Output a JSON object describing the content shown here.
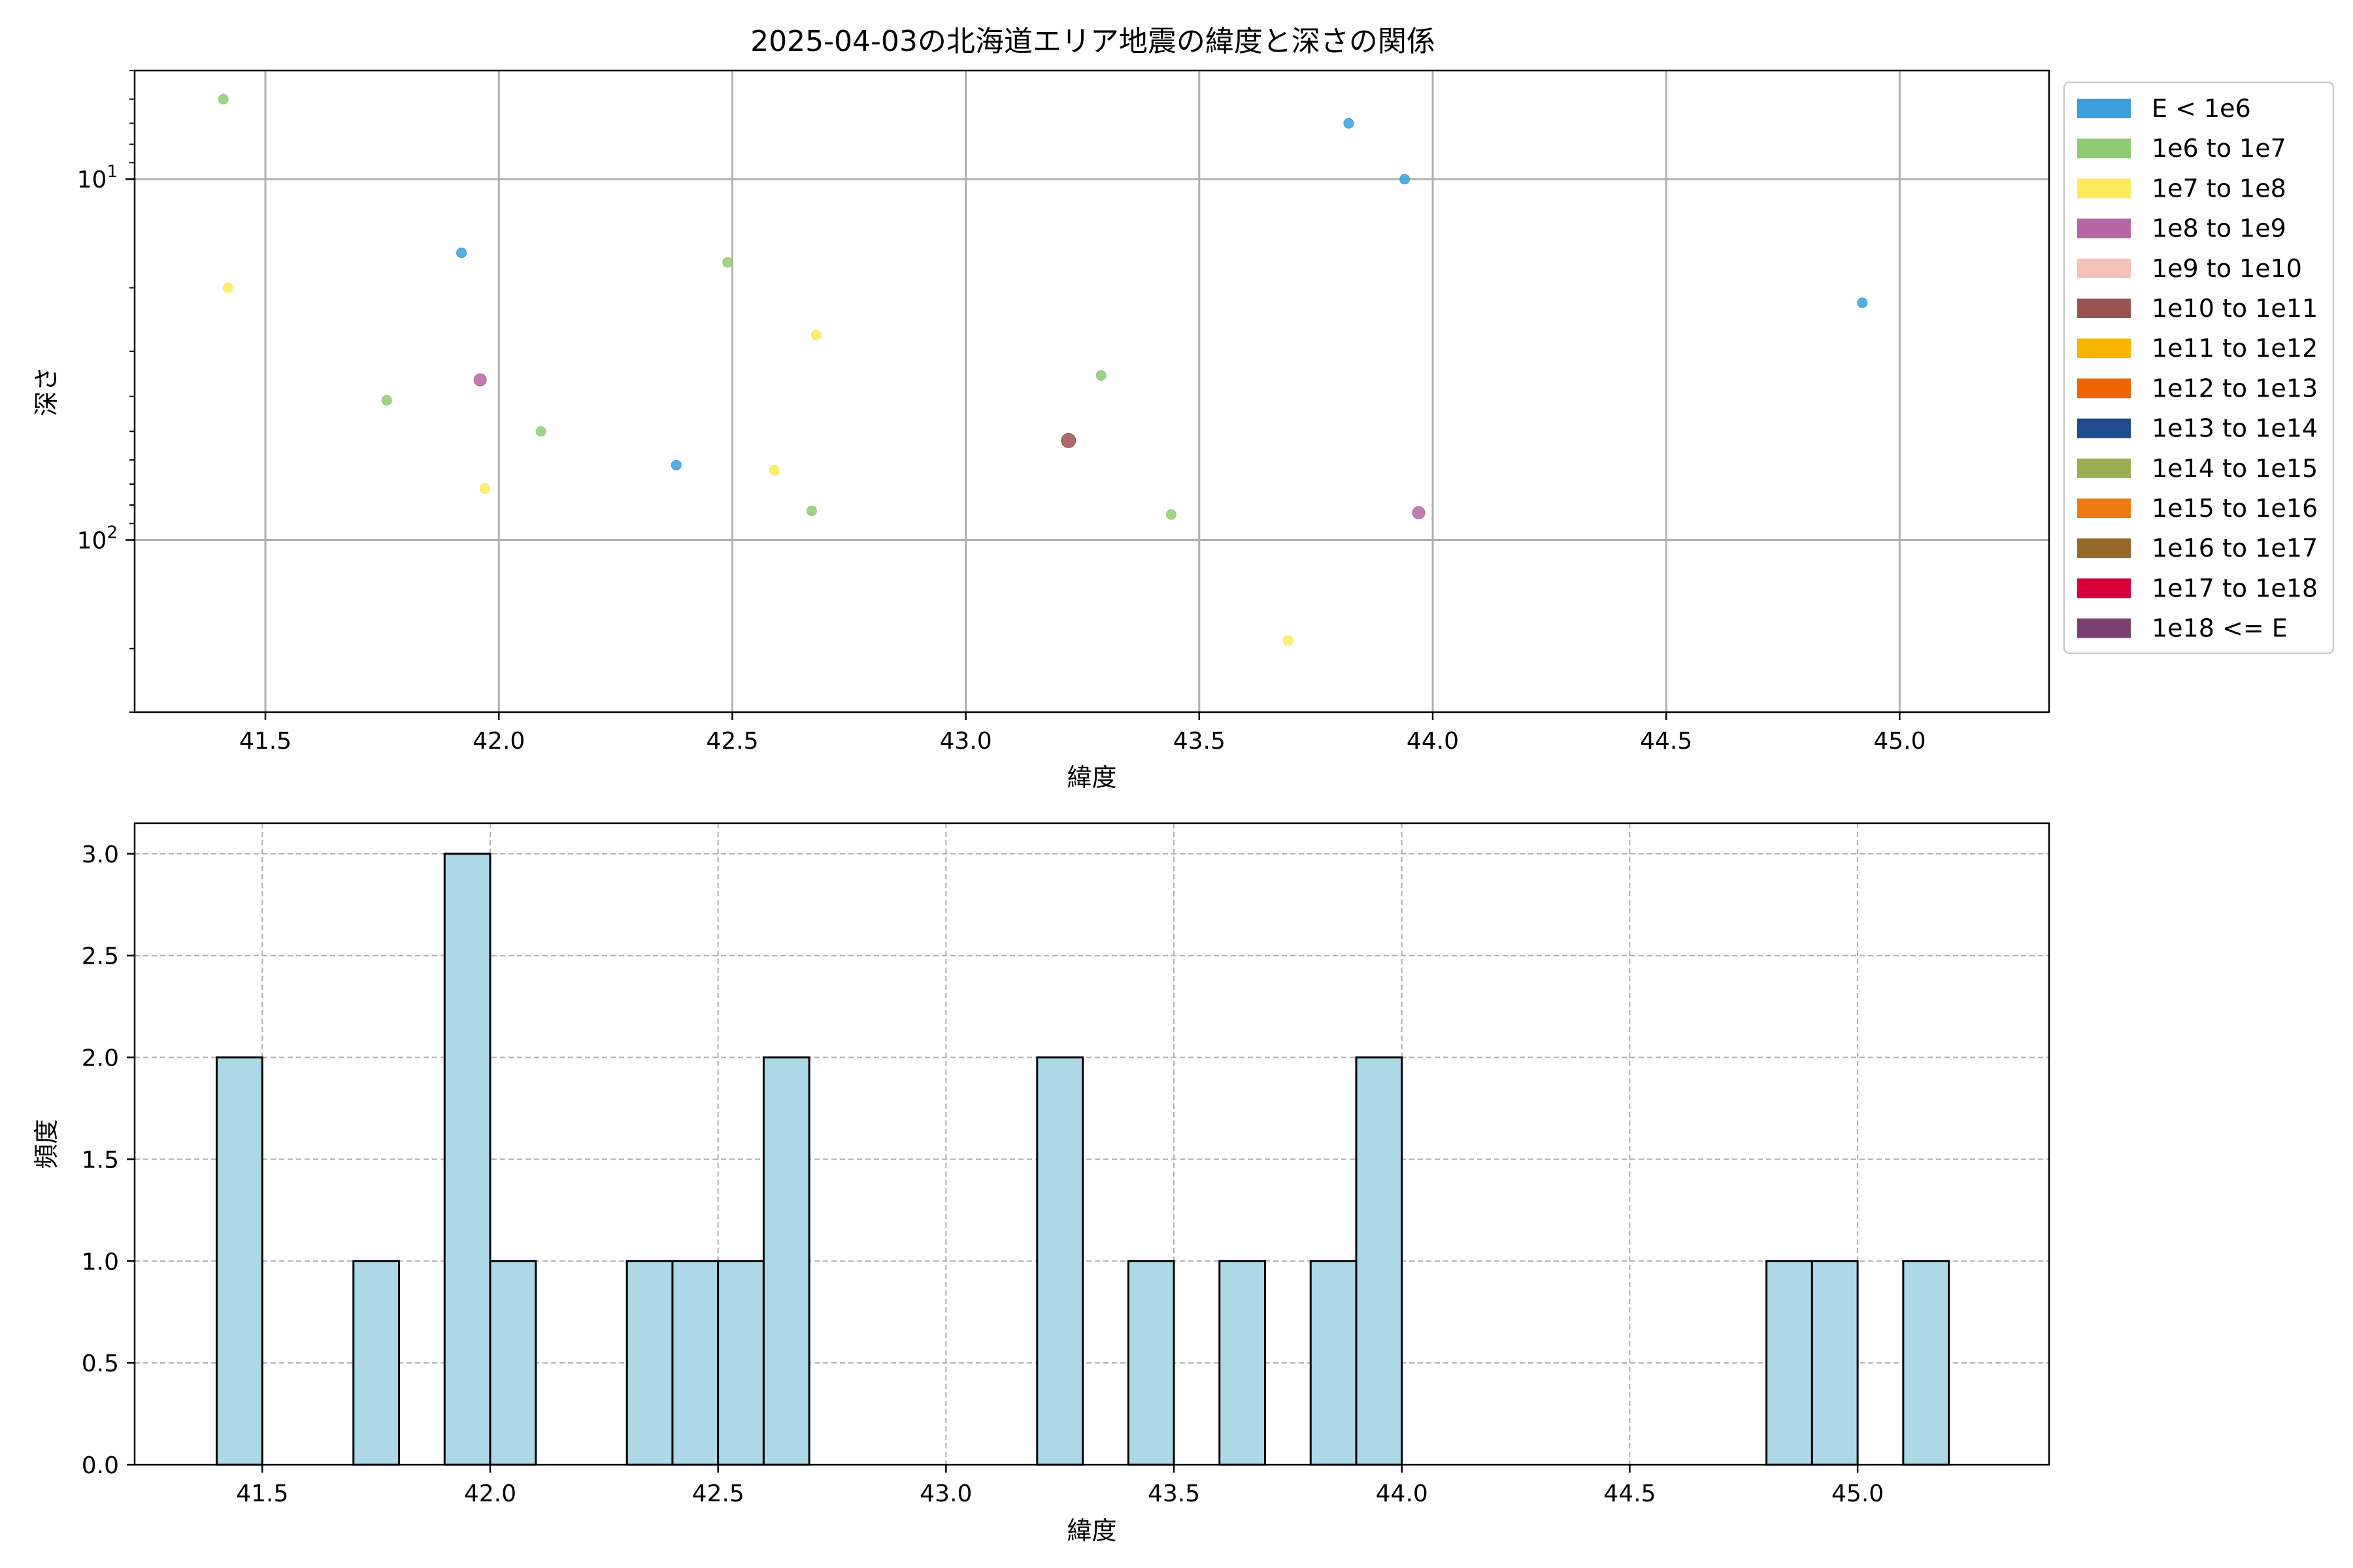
{
  "title": "2025-04-03の北海道エリア地震の緯度と深さの関係",
  "colors": {
    "grid": "#b0b0b0",
    "hist_fill": "#add8e6",
    "hist_edge": "#000000"
  },
  "chart_data": [
    {
      "type": "scatter",
      "title": "2025-04-03の北海道エリア地震の緯度と深さの関係",
      "xlabel": "緯度",
      "ylabel": "深さ",
      "xlim": [
        41.22,
        45.32
      ],
      "ylim_depth": [
        300,
        5
      ],
      "yscale": "log",
      "y_inverted": true,
      "xticks": [
        41.5,
        42.0,
        42.5,
        43.0,
        43.5,
        44.0,
        44.5,
        45.0
      ],
      "xtick_labels": [
        "41.5",
        "42.0",
        "42.5",
        "43.0",
        "43.5",
        "44.0",
        "44.5",
        "45.0"
      ],
      "ytick_labels": [
        {
          "value": 10,
          "base": "10",
          "exp": "1"
        },
        {
          "value": 100,
          "base": "10",
          "exp": "2"
        }
      ],
      "grid": true,
      "legend_position": "outside-right",
      "legend": [
        {
          "label": "E < 1e6",
          "color": "#3b9fdc"
        },
        {
          "label": "1e6 to 1e7",
          "color": "#8fcb71"
        },
        {
          "label": "1e7 to 1e8",
          "color": "#fdea5b"
        },
        {
          "label": "1e8 to 1e9",
          "color": "#b765a5"
        },
        {
          "label": "1e9 to 1e10",
          "color": "#f4c1b9"
        },
        {
          "label": "1e10 to 1e11",
          "color": "#9a5250"
        },
        {
          "label": "1e11 to 1e12",
          "color": "#f8b500"
        },
        {
          "label": "1e12 to 1e13",
          "color": "#ee6303"
        },
        {
          "label": "1e13 to 1e14",
          "color": "#1f4a8c"
        },
        {
          "label": "1e14 to 1e15",
          "color": "#9cad51"
        },
        {
          "label": "1e15 to 1e16",
          "color": "#ed7a12"
        },
        {
          "label": "1e16 to 1e17",
          "color": "#96692a"
        },
        {
          "label": "1e17 to 1e18",
          "color": "#d7003a"
        },
        {
          "label": "1e18 <= E",
          "color": "#7b3f6f"
        }
      ],
      "points": [
        {
          "x": 41.41,
          "y": 6,
          "cls": 1
        },
        {
          "x": 41.42,
          "y": 20,
          "cls": 2
        },
        {
          "x": 41.76,
          "y": 41,
          "cls": 1
        },
        {
          "x": 41.92,
          "y": 16,
          "cls": 0
        },
        {
          "x": 41.96,
          "y": 36,
          "cls": 3
        },
        {
          "x": 41.97,
          "y": 72,
          "cls": 2
        },
        {
          "x": 42.09,
          "y": 50,
          "cls": 1
        },
        {
          "x": 42.38,
          "y": 62,
          "cls": 0
        },
        {
          "x": 42.49,
          "y": 17,
          "cls": 1
        },
        {
          "x": 42.59,
          "y": 64,
          "cls": 2
        },
        {
          "x": 42.67,
          "y": 83,
          "cls": 1
        },
        {
          "x": 42.68,
          "y": 27,
          "cls": 2
        },
        {
          "x": 43.22,
          "y": 53,
          "cls": 5
        },
        {
          "x": 43.29,
          "y": 35,
          "cls": 1
        },
        {
          "x": 43.44,
          "y": 85,
          "cls": 1
        },
        {
          "x": 43.69,
          "y": 190,
          "cls": 2
        },
        {
          "x": 43.82,
          "y": 7,
          "cls": 0
        },
        {
          "x": 43.94,
          "y": 10,
          "cls": 0
        },
        {
          "x": 43.97,
          "y": 84,
          "cls": 3
        },
        {
          "x": 44.92,
          "y": 22,
          "cls": 0
        }
      ]
    },
    {
      "type": "bar",
      "subtype": "histogram",
      "xlabel": "緯度",
      "ylabel": "頻度",
      "xlim": [
        41.22,
        45.42
      ],
      "ylim": [
        0,
        3.15
      ],
      "xticks": [
        41.5,
        42.0,
        42.5,
        43.0,
        43.5,
        44.0,
        44.5,
        45.0
      ],
      "xtick_labels": [
        "41.5",
        "42.0",
        "42.5",
        "43.0",
        "43.5",
        "44.0",
        "44.5",
        "45.0"
      ],
      "yticks": [
        0,
        0.5,
        1.0,
        1.5,
        2.0,
        2.5,
        3.0
      ],
      "ytick_labels": [
        "0.0",
        "0.5",
        "1.0",
        "1.5",
        "2.0",
        "2.5",
        "3.0"
      ],
      "grid": true,
      "bins": [
        {
          "x0": 41.4,
          "x1": 41.5,
          "count": 2
        },
        {
          "x0": 41.7,
          "x1": 41.8,
          "count": 1
        },
        {
          "x0": 41.9,
          "x1": 42.0,
          "count": 3
        },
        {
          "x0": 42.0,
          "x1": 42.1,
          "count": 1
        },
        {
          "x0": 42.3,
          "x1": 42.4,
          "count": 1
        },
        {
          "x0": 42.4,
          "x1": 42.5,
          "count": 1
        },
        {
          "x0": 42.5,
          "x1": 42.6,
          "count": 1
        },
        {
          "x0": 42.6,
          "x1": 42.7,
          "count": 2
        },
        {
          "x0": 43.2,
          "x1": 43.3,
          "count": 2
        },
        {
          "x0": 43.4,
          "x1": 43.5,
          "count": 1
        },
        {
          "x0": 43.6,
          "x1": 43.7,
          "count": 1
        },
        {
          "x0": 43.8,
          "x1": 43.9,
          "count": 1
        },
        {
          "x0": 43.9,
          "x1": 44.0,
          "count": 2
        },
        {
          "x0": 44.8,
          "x1": 44.9,
          "count": 1
        },
        {
          "x0": 44.9,
          "x1": 45.0,
          "count": 1
        },
        {
          "x0": 45.1,
          "x1": 45.2,
          "count": 1
        }
      ]
    }
  ]
}
